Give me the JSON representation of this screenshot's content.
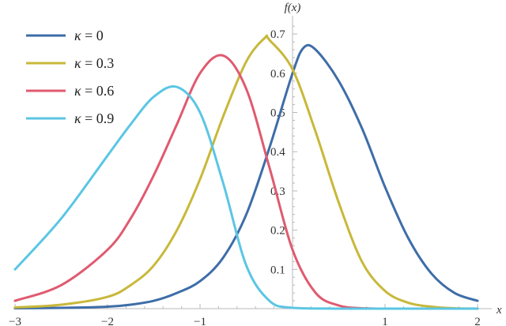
{
  "chart_data": {
    "type": "line",
    "xlabel": "x",
    "ylabel": "f(x)",
    "xlim": [
      -3,
      2
    ],
    "ylim": [
      0,
      0.72
    ],
    "x_ticks": [
      -3,
      -2,
      -1,
      1,
      2
    ],
    "x_tick_labels": [
      "−3",
      "−2",
      "−1",
      "1",
      "2"
    ],
    "y_ticks": [
      0.1,
      0.2,
      0.3,
      0.4,
      0.5,
      0.6,
      0.7
    ],
    "y_tick_labels": [
      "0.1",
      "0.2",
      "0.3",
      "0.4",
      "0.5",
      "0.6",
      "0.7"
    ],
    "legend_position": "top-left",
    "grid": false,
    "series": [
      {
        "name": "κ = 0",
        "color": "#3e6da8",
        "x": [
          -3,
          -2.5,
          -2,
          -1.75,
          -1.5,
          -1.25,
          -1,
          -0.75,
          -0.5,
          -0.25,
          0,
          0.12,
          0.25,
          0.5,
          0.75,
          1,
          1.25,
          1.5,
          1.75,
          2
        ],
        "y": [
          0.001,
          0.002,
          0.005,
          0.01,
          0.02,
          0.04,
          0.07,
          0.13,
          0.24,
          0.41,
          0.6,
          0.665,
          0.66,
          0.58,
          0.46,
          0.31,
          0.18,
          0.09,
          0.04,
          0.02
        ]
      },
      {
        "name": "κ = 0.3",
        "color": "#c8b83a",
        "x": [
          -3,
          -2.5,
          -2,
          -1.75,
          -1.5,
          -1.25,
          -1,
          -0.75,
          -0.5,
          -0.3,
          -0.25,
          0,
          0.25,
          0.5,
          0.75,
          1,
          1.25,
          1.5,
          1.75,
          2
        ],
        "y": [
          0.003,
          0.01,
          0.03,
          0.06,
          0.11,
          0.2,
          0.33,
          0.49,
          0.63,
          0.69,
          0.685,
          0.61,
          0.45,
          0.27,
          0.12,
          0.045,
          0.015,
          0.005,
          0.001,
          0
        ]
      },
      {
        "name": "κ = 0.6",
        "color": "#e05a6f",
        "x": [
          -3,
          -2.5,
          -2,
          -1.75,
          -1.5,
          -1.25,
          -1,
          -0.75,
          -0.5,
          -0.25,
          0,
          0.25,
          0.5,
          0.75,
          1,
          1.5,
          2
        ],
        "y": [
          0.02,
          0.06,
          0.15,
          0.23,
          0.34,
          0.47,
          0.6,
          0.645,
          0.56,
          0.36,
          0.15,
          0.04,
          0.008,
          0.001,
          0,
          0,
          0
        ]
      },
      {
        "name": "κ = 0.9",
        "color": "#5bc6e3",
        "x": [
          -3,
          -2.5,
          -2,
          -1.75,
          -1.5,
          -1.25,
          -1,
          -0.75,
          -0.5,
          -0.25,
          0,
          0.5,
          1,
          1.5,
          2
        ],
        "y": [
          0.1,
          0.23,
          0.39,
          0.47,
          0.54,
          0.565,
          0.5,
          0.32,
          0.11,
          0.02,
          0.002,
          0,
          0,
          0,
          0
        ]
      }
    ]
  }
}
